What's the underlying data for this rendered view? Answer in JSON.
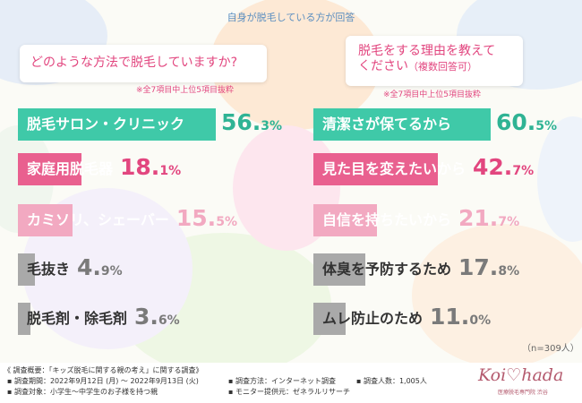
{
  "header": {
    "title": "自身が脱毛している方が回答"
  },
  "left_panel": {
    "question": "どのような方法で脱毛していますか?",
    "note": "※全7項目中上位5項目抜粋"
  },
  "right_panel": {
    "question_line1": "脱毛をする理由を教えて",
    "question_line2": "ください",
    "question_suffix": "（複数回答可）",
    "note": "※全7項目中上位5項目抜粋"
  },
  "chart_data": [
    {
      "type": "bar",
      "orientation": "horizontal",
      "title": "どのような方法で脱毛していますか?",
      "categories": [
        "脱毛サロン・クリニック",
        "家庭用脱毛器",
        "カミソリ、シェーバー",
        "毛抜き",
        "脱毛剤・除毛剤"
      ],
      "values": [
        56.3,
        18.1,
        15.5,
        4.9,
        3.6
      ],
      "value_labels": [
        {
          "int": "56.",
          "dec": "3",
          "unit": "%"
        },
        {
          "int": "18.",
          "dec": "1",
          "unit": "%"
        },
        {
          "int": "15.",
          "dec": "5",
          "unit": "%"
        },
        {
          "int": "4.",
          "dec": "9",
          "unit": "%"
        },
        {
          "int": "3.",
          "dec": "6",
          "unit": "%"
        }
      ],
      "colors": [
        "#3fc9a8",
        "#e9608f",
        "#f2a9c1",
        "#a9a9a9",
        "#a9a9a9"
      ],
      "xlim": [
        0,
        60
      ]
    },
    {
      "type": "bar",
      "orientation": "horizontal",
      "title": "脱毛をする理由を教えてください（複数回答可）",
      "categories": [
        "清潔さが保てるから",
        "見た目を変えたいから",
        "自信を持ちたいから",
        "体臭を予防するため",
        "ムレ防止のため"
      ],
      "values": [
        60.5,
        42.7,
        21.7,
        17.8,
        11.0
      ],
      "value_labels": [
        {
          "int": "60.",
          "dec": "5",
          "unit": "%"
        },
        {
          "int": "42.",
          "dec": "7",
          "unit": "%"
        },
        {
          "int": "21.",
          "dec": "7",
          "unit": "%"
        },
        {
          "int": "17.",
          "dec": "8",
          "unit": "%"
        },
        {
          "int": "11.",
          "dec": "0",
          "unit": "%"
        }
      ],
      "colors": [
        "#3fc9a8",
        "#e9608f",
        "#f2a9c1",
        "#a9a9a9",
        "#a9a9a9"
      ],
      "xlim": [
        0,
        75
      ]
    }
  ],
  "sample_size": "（n=309人）",
  "footer": {
    "overview": "《 調査概要：「キッズ脱毛に関する親の考え」に関する調査》",
    "period": "▪ 調査期間：2022年9月12日 (月) ～ 2022年9月13日 (火)",
    "method": "▪ 調査方法：インターネット調査",
    "count": "▪ 調査人数：1,005人",
    "target": "▪ 調査対象：小学生～中学生のお子様を持つ親",
    "provider": "▪ モニター提供元：ゼネラルリサーチ"
  },
  "logo": {
    "text": "Koi♡hada",
    "sub": "医療脱毛専門院 渋谷"
  }
}
